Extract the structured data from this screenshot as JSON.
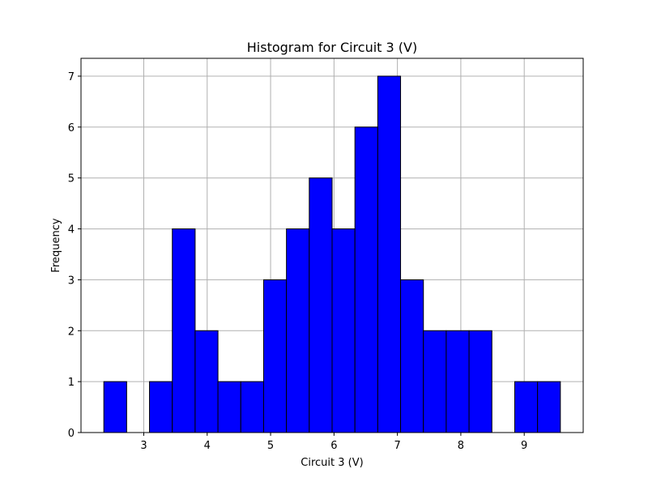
{
  "chart_data": {
    "type": "bar",
    "title": "Histogram for Circuit 3 (V)",
    "xlabel": "Circuit 3 (V)",
    "ylabel": "Frequency",
    "bin_edges": [
      2.37,
      2.73,
      3.09,
      3.45,
      3.81,
      4.17,
      4.53,
      4.89,
      5.25,
      5.61,
      5.97,
      6.33,
      6.69,
      7.05,
      7.41,
      7.77,
      8.13,
      8.49,
      8.85,
      9.21,
      9.57
    ],
    "values": [
      1,
      0,
      1,
      4,
      2,
      1,
      1,
      3,
      4,
      5,
      4,
      6,
      7,
      3,
      2,
      2,
      2,
      0,
      1,
      1
    ],
    "xlim": [
      2.01,
      9.93
    ],
    "ylim": [
      0,
      7.35
    ],
    "xticks": [
      3,
      4,
      5,
      6,
      7,
      8,
      9
    ],
    "yticks": [
      0,
      1,
      2,
      3,
      4,
      5,
      6,
      7
    ],
    "grid": true,
    "bar_color": "#0000ff",
    "edge_color": "#000000",
    "grid_color": "#b0b0b0"
  }
}
